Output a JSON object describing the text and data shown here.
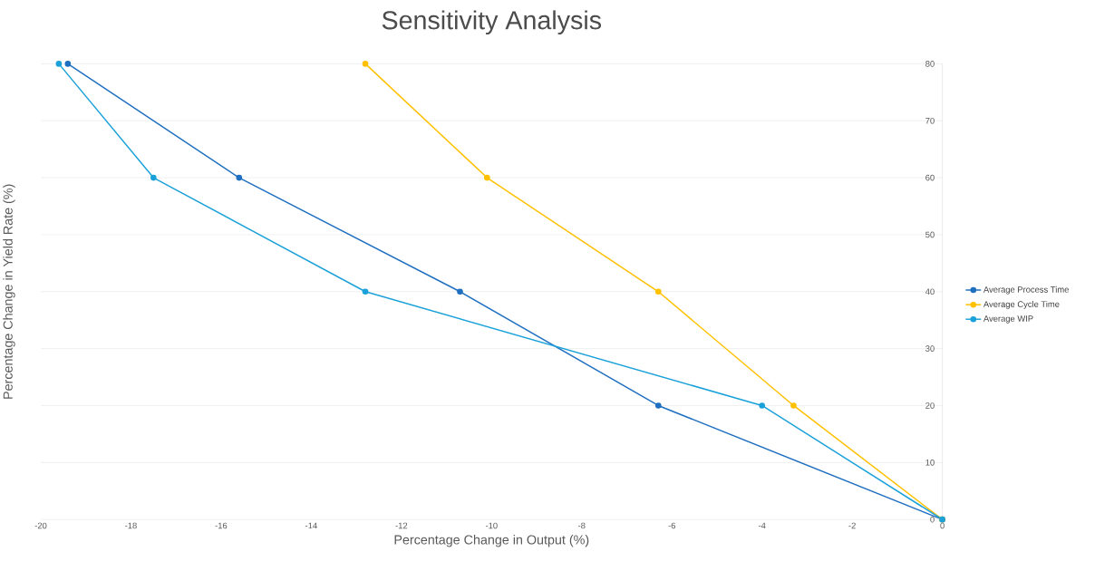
{
  "chart_data": {
    "type": "line",
    "title": "Sensitivity Analysis",
    "xlabel": "Percentage Change in Output (%)",
    "ylabel": "Percentage Change in Yield Rate (%)",
    "series": [
      {
        "name": "Average Process Time",
        "color": "#1f6fc0",
        "x": [
          -19.4,
          -15.6,
          -10.7,
          -6.3,
          0
        ],
        "values": [
          80,
          60,
          40,
          20,
          0
        ]
      },
      {
        "name": "Average Cycle Time",
        "color": "#ffc000",
        "x": [
          -12.8,
          -10.1,
          -6.3,
          -3.3,
          0
        ],
        "values": [
          80,
          60,
          40,
          20,
          0
        ]
      },
      {
        "name": "Average WIP",
        "color": "#1ba1d9",
        "x": [
          -19.6,
          -17.5,
          -12.8,
          -4.0,
          0
        ],
        "values": [
          80,
          60,
          40,
          20,
          0
        ]
      }
    ],
    "xlim": [
      -20,
      0
    ],
    "ylim": [
      0,
      80
    ],
    "xticks": [
      -20,
      -18,
      -16,
      -14,
      -12,
      -10,
      -8,
      -6,
      -4,
      -2,
      0
    ],
    "yticks": [
      0,
      10,
      20,
      30,
      40,
      50,
      60,
      70,
      80
    ],
    "grid": "y",
    "legend": "right",
    "marker": "circle",
    "line_style": "solid"
  }
}
